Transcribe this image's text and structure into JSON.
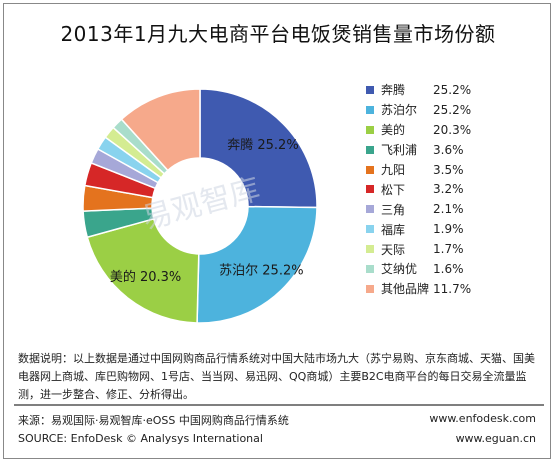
{
  "chart_data": {
    "type": "pie",
    "title": "2013年1月九大电商平台电饭煲销售量市场份额",
    "slices": [
      {
        "name": "奔腾",
        "value": 25.2,
        "label": "25.2%",
        "color": "#3f5ab0"
      },
      {
        "name": "苏泊尔",
        "value": 25.2,
        "label": "25.2%",
        "color": "#4db3dd"
      },
      {
        "name": "美的",
        "value": 20.3,
        "label": "20.3%",
        "color": "#9bcf45"
      },
      {
        "name": "飞利浦",
        "value": 3.6,
        "label": "3.6%",
        "color": "#3aa58c"
      },
      {
        "name": "九阳",
        "value": 3.5,
        "label": "3.5%",
        "color": "#e4731e"
      },
      {
        "name": "松下",
        "value": 3.2,
        "label": "3.2%",
        "color": "#d62727"
      },
      {
        "name": "三角",
        "value": 2.1,
        "label": "2.1%",
        "color": "#a6a8d8"
      },
      {
        "name": "福库",
        "value": 1.9,
        "label": "1.9%",
        "color": "#89d3ee"
      },
      {
        "name": "天际",
        "value": 1.7,
        "label": "1.7%",
        "color": "#d4ec92"
      },
      {
        "name": "艾纳优",
        "value": 1.6,
        "label": "1.6%",
        "color": "#a9ddcb"
      },
      {
        "name": "其他品牌",
        "value": 11.7,
        "label": "11.7%",
        "color": "#f6a98b"
      }
    ],
    "data_labels": [
      {
        "name": "奔腾",
        "text": "奔腾  25.2%"
      },
      {
        "name": "苏泊尔",
        "text": "苏泊尔  25.2%"
      },
      {
        "name": "美的",
        "text": "美的  20.3%"
      }
    ],
    "legend_position": "right",
    "hole": "donut"
  },
  "watermark": {
    "text": "易观智库"
  },
  "note": {
    "text": "数据说明：以上数据是通过中国网购商品行情系统对中国大陆市场九大（苏宁易购、京东商城、天猫、国美电器网上商城、库巴购物网、1号店、当当网、易迅网、QQ商城）主要B2C电商平台的每日交易全流量监测，进一步整合、修正、分析得出。"
  },
  "source": {
    "cn": "来源：易观国际·易观智库·eOSS 中国网购商品行情系统",
    "en": "SOURCE: EnfoDesk © Analysys International",
    "url1": "www.enfodesk.com",
    "url2": "www.eguan.cn"
  }
}
